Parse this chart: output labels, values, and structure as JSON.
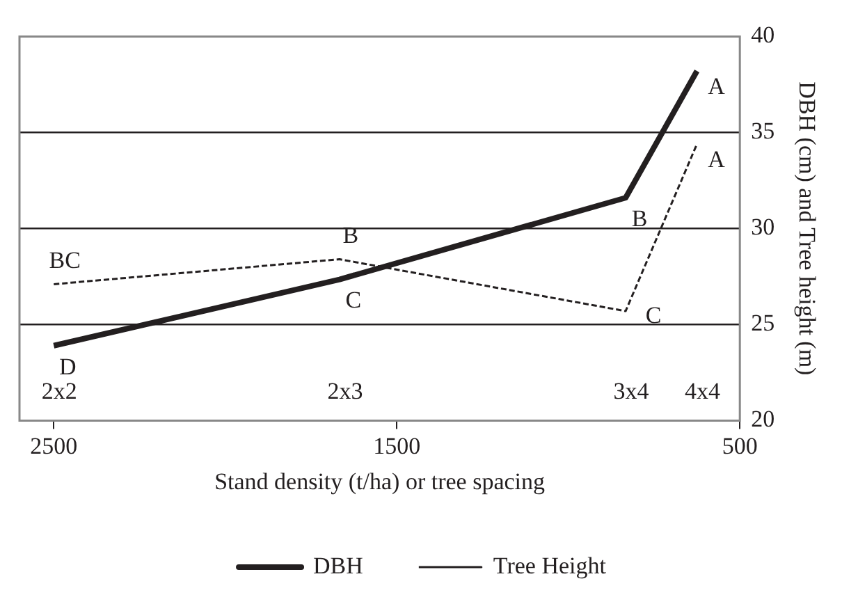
{
  "chart_data": {
    "type": "line",
    "xlabel": "Stand density (t/ha) or tree spacing",
    "ylabel": "DBH (cm) and Tree height (m)",
    "xlim": [
      2600,
      500
    ],
    "xticks": [
      2500,
      1500,
      500
    ],
    "ylim": [
      20,
      40
    ],
    "yticks": [
      20,
      25,
      30,
      35,
      40
    ],
    "grid": "y",
    "legend": "bottom",
    "marker": "none",
    "series": [
      {
        "name": "DBH",
        "color": "#231f20",
        "line_style": "solid",
        "x": [
          2500,
          1667,
          833,
          625
        ],
        "values": [
          23.9,
          27.35,
          31.6,
          38.2
        ]
      },
      {
        "name": "Tree Height",
        "color": "#231f20",
        "line_style": "dashed",
        "x": [
          2500,
          1667,
          833,
          625
        ],
        "values": [
          27.1,
          28.4,
          25.7,
          34.4
        ]
      }
    ],
    "annotations": [
      {
        "text": "D",
        "x": 2500,
        "y": 23.9
      },
      {
        "text": "BC",
        "x": 2500,
        "y": 27.1
      },
      {
        "text": "B",
        "x": 1667,
        "y": 28.4
      },
      {
        "text": "C",
        "x": 1667,
        "y": 27.35
      },
      {
        "text": "B",
        "x": 833,
        "y": 31.6
      },
      {
        "text": "C",
        "x": 833,
        "y": 25.7
      },
      {
        "text": "A",
        "x": 625,
        "y": 38.2
      },
      {
        "text": "A",
        "x": 625,
        "y": 34.4
      },
      "2x2",
      "2x3",
      "3x4",
      "4x4"
    ]
  }
}
